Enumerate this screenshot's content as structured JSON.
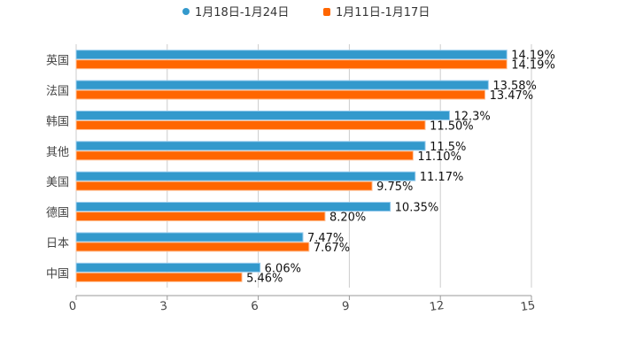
{
  "chart_data": {
    "type": "bar",
    "orientation": "horizontal",
    "title": "",
    "xlabel": "",
    "ylabel": "",
    "xlim": [
      0,
      15
    ],
    "x_ticks": [
      0,
      3,
      6,
      9,
      12,
      15
    ],
    "grid": true,
    "legend_position": "top-center",
    "categories": [
      "英国",
      "法国",
      "韩国",
      "其他",
      "美国",
      "德国",
      "日本",
      "中国"
    ],
    "series": [
      {
        "name": "1月18日-1月24日",
        "color": "#3399cc",
        "values": [
          14.19,
          13.58,
          12.3,
          11.5,
          11.17,
          10.35,
          7.47,
          6.06
        ],
        "labels": [
          "14.19%",
          "13.58%",
          "12.3%",
          "11.5%",
          "11.17%",
          "10.35%",
          "7.47%",
          "6.06%"
        ]
      },
      {
        "name": "1月11日-1月17日",
        "color": "#ff6600",
        "values": [
          14.19,
          13.47,
          11.5,
          11.1,
          9.75,
          8.2,
          7.67,
          5.46
        ],
        "labels": [
          "14.19%",
          "13.47%",
          "11.50%",
          "11.10%",
          "9.75%",
          "8.20%",
          "7.67%",
          "5.46%"
        ]
      }
    ]
  }
}
